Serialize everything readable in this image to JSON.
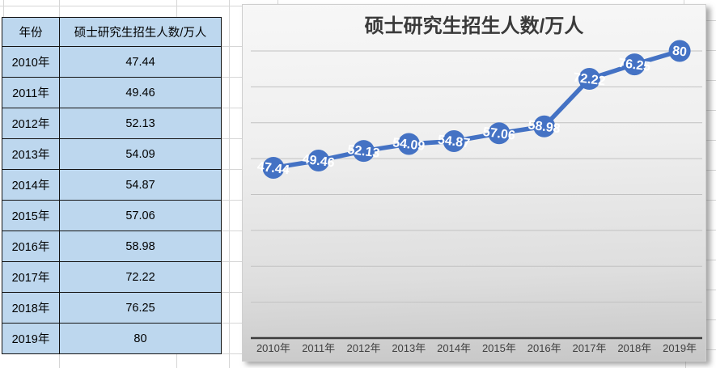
{
  "table": {
    "headers": [
      "年份",
      "硕士研究生招生人数/万人"
    ],
    "rows": [
      [
        "2010年",
        "47.44"
      ],
      [
        "2011年",
        "49.46"
      ],
      [
        "2012年",
        "52.13"
      ],
      [
        "2013年",
        "54.09"
      ],
      [
        "2014年",
        "54.87"
      ],
      [
        "2015年",
        "57.06"
      ],
      [
        "2016年",
        "58.98"
      ],
      [
        "2017年",
        "72.22"
      ],
      [
        "2018年",
        "76.25"
      ],
      [
        "2019年",
        "80"
      ]
    ]
  },
  "chart_data": {
    "type": "line",
    "title": "硕士研究生招生人数/万人",
    "categories": [
      "2010年",
      "2011年",
      "2012年",
      "2013年",
      "2014年",
      "2015年",
      "2016年",
      "2017年",
      "2018年",
      "2019年"
    ],
    "values": [
      47.44,
      49.46,
      52.13,
      54.09,
      54.87,
      57.06,
      58.98,
      72.22,
      76.25,
      80
    ],
    "data_labels": [
      "47.44",
      "49.46",
      "52.13",
      "54.09",
      "54.87",
      "57.06",
      "58.98",
      "72.22",
      "76.25",
      "80"
    ],
    "xlabel": "",
    "ylabel": "",
    "ylim": [
      0,
      90
    ],
    "gridline_step": 10,
    "grid": "horizontal",
    "legend": "none",
    "value_axis_labels": "hidden"
  },
  "colors": {
    "series_blue": "#4472C4",
    "data_label_text": "#ffffff",
    "gridline": "#c2c2c2",
    "axis_line": "#3c3c3c",
    "tick_label": "#404040",
    "title_text": "#3a3a3a",
    "table_fill": "#bdd7ee",
    "table_border": "#141414",
    "sheet_gridline": "#d6d6d6"
  }
}
